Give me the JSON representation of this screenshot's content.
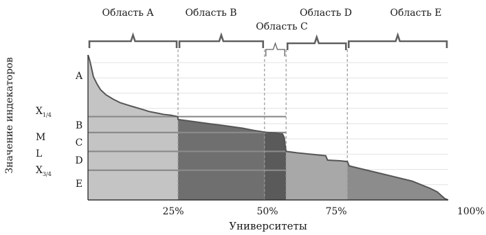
{
  "chart_data": {
    "type": "area",
    "xlabel": "Университеты",
    "ylabel": "Значение индекаторов",
    "x_ticks": [
      "25%",
      "50%",
      "75%",
      "100%"
    ],
    "xlim": [
      0,
      100
    ],
    "curve": {
      "x": [
        0,
        0.4,
        0.8,
        1.5,
        2.5,
        3.5,
        5,
        7,
        9,
        11,
        13,
        15,
        17,
        19,
        21,
        23,
        24.9,
        25,
        28,
        31,
        34,
        37,
        40,
        43,
        46,
        48.5,
        50,
        52,
        54,
        54.5,
        54.8,
        55,
        58,
        62,
        66,
        66.5,
        70,
        72,
        72.5,
        75,
        80,
        85,
        90,
        93,
        95,
        97,
        99,
        100
      ],
      "y": [
        1.0,
        0.97,
        0.93,
        0.85,
        0.8,
        0.76,
        0.725,
        0.695,
        0.67,
        0.655,
        0.64,
        0.625,
        0.61,
        0.6,
        0.59,
        0.585,
        0.575,
        0.555,
        0.545,
        0.535,
        0.525,
        0.515,
        0.505,
        0.495,
        0.48,
        0.47,
        0.465,
        0.462,
        0.455,
        0.43,
        0.36,
        0.335,
        0.325,
        0.315,
        0.305,
        0.275,
        0.27,
        0.265,
        0.235,
        0.22,
        0.19,
        0.16,
        0.13,
        0.1,
        0.08,
        0.055,
        0.01,
        0.0
      ]
    },
    "regions": [
      {
        "label": "Область A",
        "from": 0,
        "to": 25,
        "fill": "#c4c4c4"
      },
      {
        "label": "Область B",
        "from": 25,
        "to": 49,
        "fill": "#6f6f6f"
      },
      {
        "label": "Область C",
        "from": 49,
        "to": 55,
        "fill": "#5a5a5a"
      },
      {
        "label": "Область D",
        "from": 55,
        "to": 72,
        "fill": "#a8a8a8"
      },
      {
        "label": "Область E",
        "from": 72,
        "to": 100,
        "fill": "#8c8c8c"
      }
    ],
    "levels": [
      {
        "name": "X1/4",
        "value": 0.575
      },
      {
        "name": "M",
        "value": 0.465
      },
      {
        "name": "L",
        "value": 0.335
      },
      {
        "name": "X3/4",
        "value": 0.205
      }
    ],
    "y_side_labels": {
      "letters": [
        "A",
        "B",
        "C",
        "D",
        "E"
      ],
      "markers": [
        {
          "main": "X",
          "sub": "1/4"
        },
        {
          "main": "M",
          "sub": ""
        },
        {
          "main": "L",
          "sub": ""
        },
        {
          "main": "X",
          "sub": "3/4"
        }
      ]
    },
    "grid": true,
    "colors": {
      "curve": "#555555",
      "grid": "#e2e2e2",
      "levels": "#8a8a8a",
      "divider": "#9a9a9a",
      "brace": "#606060"
    }
  }
}
